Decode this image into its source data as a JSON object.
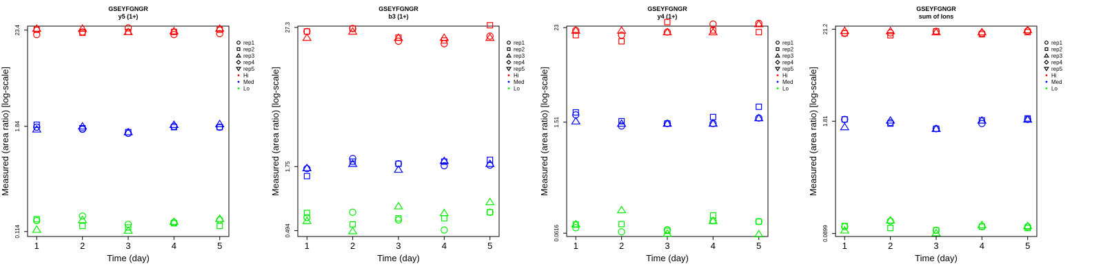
{
  "colors": {
    "Hi": "#ff0000",
    "Med": "#0000ff",
    "Lo": "#00ee00",
    "axis": "#000000"
  },
  "legend": {
    "items": [
      {
        "label": "rep1",
        "symbol": "circle"
      },
      {
        "label": "rep2",
        "symbol": "square"
      },
      {
        "label": "rep3",
        "symbol": "triangle-up"
      },
      {
        "label": "rep4",
        "symbol": "diamond"
      },
      {
        "label": "rep5",
        "symbol": "triangle-down"
      },
      {
        "label": "Hi",
        "symbol": "dot",
        "color": "#ff0000"
      },
      {
        "label": "Med",
        "symbol": "dot",
        "color": "#0000ff"
      },
      {
        "label": "Lo",
        "symbol": "dot",
        "color": "#00ee00"
      }
    ],
    "placement": "right"
  },
  "chart_data": [
    {
      "type": "scatter",
      "title": "GSEYFGNGR",
      "subtitle": "y5 (1+)",
      "xlabel": "Time (day)",
      "ylabel": "Measured (area ratio) [log-scale]",
      "yscale": "log",
      "xlim": [
        0.8,
        5.2
      ],
      "ylim": [
        0.1,
        26
      ],
      "xticks": [
        1,
        2,
        3,
        4,
        5
      ],
      "yticks": [
        0.114,
        1.84,
        23.4
      ],
      "ytick_labels": [
        "0.114",
        "1.84",
        "23.4"
      ],
      "grid": false,
      "series": [
        {
          "name": "Hi rep1",
          "level": "Hi",
          "symbol": "circle",
          "x": [
            1,
            2,
            3,
            4,
            5
          ],
          "y": [
            20.8,
            22.3,
            24.8,
            20.8,
            21.3
          ]
        },
        {
          "name": "Hi rep2",
          "level": "Hi",
          "symbol": "square",
          "x": [
            1,
            2,
            3,
            4,
            5
          ],
          "y": [
            23.6,
            21.8,
            22.3,
            22.3,
            23.6
          ]
        },
        {
          "name": "Hi rep3",
          "level": "Hi",
          "symbol": "triangle-up",
          "x": [
            1,
            2,
            3,
            4,
            5
          ],
          "y": [
            24.4,
            24.4,
            22.3,
            22.8,
            24.4
          ]
        },
        {
          "name": "Med rep1",
          "level": "Med",
          "symbol": "circle",
          "x": [
            1,
            2,
            3,
            4,
            5
          ],
          "y": [
            1.8,
            1.7,
            1.53,
            1.84,
            1.8
          ]
        },
        {
          "name": "Med rep2",
          "level": "Med",
          "symbol": "square",
          "x": [
            1,
            2,
            3,
            4,
            5
          ],
          "y": [
            1.92,
            1.75,
            1.58,
            1.8,
            1.8
          ]
        },
        {
          "name": "Med rep3",
          "level": "Med",
          "symbol": "triangle-up",
          "x": [
            1,
            2,
            3,
            4,
            5
          ],
          "y": [
            1.7,
            1.84,
            1.58,
            1.92,
            1.96
          ]
        },
        {
          "name": "Lo rep1",
          "level": "Lo",
          "symbol": "circle",
          "x": [
            1,
            2,
            3,
            4,
            5
          ],
          "y": [
            0.152,
            0.172,
            0.138,
            0.145,
            0.155
          ]
        },
        {
          "name": "Lo rep2",
          "level": "Lo",
          "symbol": "square",
          "x": [
            1,
            2,
            3,
            4,
            5
          ],
          "y": [
            0.158,
            0.132,
            0.127,
            0.142,
            0.132
          ]
        },
        {
          "name": "Lo rep3",
          "level": "Lo",
          "symbol": "triangle-up",
          "x": [
            1,
            2,
            3,
            4,
            5
          ],
          "y": [
            0.12,
            0.155,
            0.117,
            0.148,
            0.16
          ]
        }
      ]
    },
    {
      "type": "scatter",
      "title": "GSEYFGNGR",
      "subtitle": "b3 (1+)",
      "xlabel": "Time (day)",
      "ylabel": "Measured (area ratio) [log-scale]",
      "yscale": "log",
      "xlim": [
        0.8,
        5.2
      ],
      "ylim": [
        0.44,
        28
      ],
      "xticks": [
        1,
        2,
        3,
        4,
        5
      ],
      "yticks": [
        0.494,
        1.75,
        27.3
      ],
      "ytick_labels": [
        "0.494",
        "1.75",
        "27.3"
      ],
      "grid": false,
      "series": [
        {
          "name": "Hi rep1",
          "level": "Hi",
          "symbol": "circle",
          "x": [
            1,
            2,
            3,
            4,
            5
          ],
          "y": [
            25.2,
            26.7,
            20.8,
            19.8,
            23.0
          ]
        },
        {
          "name": "Hi rep2",
          "level": "Hi",
          "symbol": "square",
          "x": [
            1,
            2,
            3,
            4,
            5
          ],
          "y": [
            25.2,
            26.7,
            22.3,
            21.1,
            28.5
          ]
        },
        {
          "name": "Hi rep3",
          "level": "Hi",
          "symbol": "triangle-up",
          "x": [
            1,
            2,
            3,
            4,
            5
          ],
          "y": [
            22.3,
            25.2,
            22.3,
            22.3,
            22.3
          ]
        },
        {
          "name": "Med rep1",
          "level": "Med",
          "symbol": "circle",
          "x": [
            1,
            2,
            3,
            4,
            5
          ],
          "y": [
            1.68,
            2.05,
            1.85,
            1.78,
            1.8
          ]
        },
        {
          "name": "Med rep2",
          "level": "Med",
          "symbol": "square",
          "x": [
            1,
            2,
            3,
            4,
            5
          ],
          "y": [
            1.45,
            1.93,
            1.85,
            1.93,
            2.0
          ]
        },
        {
          "name": "Med rep3",
          "level": "Med",
          "symbol": "triangle-up",
          "x": [
            1,
            2,
            3,
            4,
            5
          ],
          "y": [
            1.7,
            1.85,
            1.65,
            1.96,
            1.85
          ]
        },
        {
          "name": "Lo rep1",
          "level": "Lo",
          "symbol": "circle",
          "x": [
            1,
            2,
            3,
            4,
            5
          ],
          "y": [
            0.64,
            0.71,
            0.61,
            0.5,
            0.71
          ]
        },
        {
          "name": "Lo rep2",
          "level": "Lo",
          "symbol": "square",
          "x": [
            1,
            2,
            3,
            4,
            5
          ],
          "y": [
            0.7,
            0.56,
            0.63,
            0.63,
            0.71
          ]
        },
        {
          "name": "Lo rep3",
          "level": "Lo",
          "symbol": "triangle-up",
          "x": [
            1,
            2,
            3,
            4,
            5
          ],
          "y": [
            0.6,
            0.49,
            0.8,
            0.7,
            0.87
          ]
        }
      ]
    },
    {
      "type": "scatter",
      "title": "GSEYFGNGR",
      "subtitle": "y4 (1+)",
      "xlabel": "Time (day)",
      "ylabel": "Measured (area ratio) [log-scale]",
      "yscale": "log",
      "xlim": [
        0.8,
        5.2
      ],
      "ylim": [
        0.056,
        24
      ],
      "xticks": [
        1,
        2,
        3,
        4,
        5
      ],
      "yticks": [
        0.0616,
        1.51,
        23
      ],
      "ytick_labels": [
        "0.0616",
        "1.51",
        "23"
      ],
      "grid": false,
      "series": [
        {
          "name": "Hi rep1",
          "level": "Hi",
          "symbol": "circle",
          "x": [
            1,
            2,
            3,
            4,
            5
          ],
          "y": [
            21.2,
            18.5,
            20.2,
            25.5,
            26.0
          ]
        },
        {
          "name": "Hi rep2",
          "level": "Hi",
          "symbol": "square",
          "x": [
            1,
            2,
            3,
            4,
            5
          ],
          "y": [
            18.5,
            15.5,
            27.0,
            21.2,
            20.2
          ]
        },
        {
          "name": "Hi rep3",
          "level": "Hi",
          "symbol": "triangle-up",
          "x": [
            1,
            2,
            3,
            4,
            5
          ],
          "y": [
            21.2,
            21.2,
            20.2,
            20.2,
            25.5
          ]
        },
        {
          "name": "Med rep1",
          "level": "Med",
          "symbol": "circle",
          "x": [
            1,
            2,
            3,
            4,
            5
          ],
          "y": [
            1.86,
            1.35,
            1.45,
            1.45,
            1.7
          ]
        },
        {
          "name": "Med rep2",
          "level": "Med",
          "symbol": "square",
          "x": [
            1,
            2,
            3,
            4,
            5
          ],
          "y": [
            2.0,
            1.55,
            1.45,
            1.75,
            2.35
          ]
        },
        {
          "name": "Med rep3",
          "level": "Med",
          "symbol": "triangle-up",
          "x": [
            1,
            2,
            3,
            4,
            5
          ],
          "y": [
            1.55,
            1.45,
            1.45,
            1.45,
            1.7
          ]
        },
        {
          "name": "Lo rep1",
          "level": "Lo",
          "symbol": "circle",
          "x": [
            1,
            2,
            3,
            4,
            5
          ],
          "y": [
            0.072,
            0.064,
            0.068,
            0.088,
            0.086
          ]
        },
        {
          "name": "Lo rep2",
          "level": "Lo",
          "symbol": "square",
          "x": [
            1,
            2,
            3,
            4,
            5
          ],
          "y": [
            0.079,
            0.08,
            0.066,
            0.103,
            0.086
          ]
        },
        {
          "name": "Lo rep3",
          "level": "Lo",
          "symbol": "triangle-up",
          "x": [
            1,
            2,
            3,
            4,
            5
          ],
          "y": [
            0.08,
            0.12,
            0.061,
            0.088,
            0.06
          ]
        }
      ]
    },
    {
      "type": "scatter",
      "title": "GSEYFGNGR",
      "subtitle": "sum of Ions",
      "xlabel": "Time (day)",
      "ylabel": "Measured (area ratio) [log-scale]",
      "yscale": "log",
      "xlim": [
        0.8,
        5.2
      ],
      "ylim": [
        0.083,
        23
      ],
      "xticks": [
        1,
        2,
        3,
        4,
        5
      ],
      "yticks": [
        0.0899,
        1.81,
        21.2
      ],
      "ytick_labels": [
        "0.0899",
        "1.81",
        "21.2"
      ],
      "grid": false,
      "series": [
        {
          "name": "Hi rep1",
          "level": "Hi",
          "symbol": "circle",
          "x": [
            1,
            2,
            3,
            4,
            5
          ],
          "y": [
            19.0,
            19.2,
            20.0,
            19.0,
            20.2
          ]
        },
        {
          "name": "Hi rep2",
          "level": "Hi",
          "symbol": "square",
          "x": [
            1,
            2,
            3,
            4,
            5
          ],
          "y": [
            19.0,
            18.0,
            20.0,
            18.5,
            19.6
          ]
        },
        {
          "name": "Hi rep3",
          "level": "Hi",
          "symbol": "triangle-up",
          "x": [
            1,
            2,
            3,
            4,
            5
          ],
          "y": [
            20.3,
            20.2,
            19.6,
            19.6,
            20.7
          ]
        },
        {
          "name": "Med rep1",
          "level": "Med",
          "symbol": "circle",
          "x": [
            1,
            2,
            3,
            4,
            5
          ],
          "y": [
            1.9,
            1.75,
            1.48,
            1.7,
            1.9
          ]
        },
        {
          "name": "Med rep2",
          "level": "Med",
          "symbol": "square",
          "x": [
            1,
            2,
            3,
            4,
            5
          ],
          "y": [
            1.9,
            1.7,
            1.48,
            1.85,
            1.95
          ]
        },
        {
          "name": "Med rep3",
          "level": "Med",
          "symbol": "triangle-up",
          "x": [
            1,
            2,
            3,
            4,
            5
          ],
          "y": [
            1.55,
            1.85,
            1.48,
            1.85,
            1.9
          ]
        },
        {
          "name": "Lo rep1",
          "level": "Lo",
          "symbol": "circle",
          "x": [
            1,
            2,
            3,
            4,
            5
          ],
          "y": [
            0.108,
            0.125,
            0.098,
            0.108,
            0.108
          ]
        },
        {
          "name": "Lo rep2",
          "level": "Lo",
          "symbol": "square",
          "x": [
            1,
            2,
            3,
            4,
            5
          ],
          "y": [
            0.11,
            0.104,
            0.098,
            0.108,
            0.104
          ]
        },
        {
          "name": "Lo rep3",
          "level": "Lo",
          "symbol": "triangle-up",
          "x": [
            1,
            2,
            3,
            4,
            5
          ],
          "y": [
            0.098,
            0.128,
            0.091,
            0.113,
            0.11
          ]
        }
      ]
    }
  ]
}
